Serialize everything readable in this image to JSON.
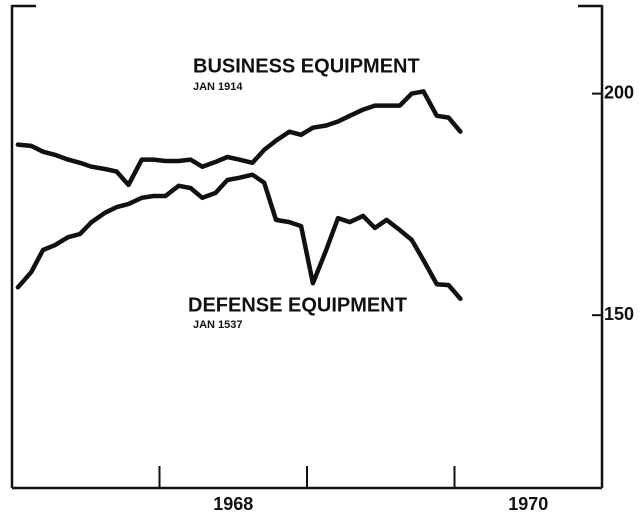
{
  "chart_data": {
    "type": "line",
    "annotations": [
      {
        "text": "BUSINESS EQUIPMENT",
        "sub": "JAN 1914"
      },
      {
        "text": "DEFENSE EQUIPMENT",
        "sub": "JAN 1537"
      }
    ],
    "x": [
      1967.04,
      1967.13,
      1967.21,
      1967.29,
      1967.38,
      1967.46,
      1967.54,
      1967.63,
      1967.71,
      1967.79,
      1967.88,
      1967.96,
      1968.04,
      1968.13,
      1968.21,
      1968.29,
      1968.38,
      1968.46,
      1968.54,
      1968.63,
      1968.71,
      1968.79,
      1968.88,
      1968.96,
      1969.04,
      1969.13,
      1969.21,
      1969.29,
      1969.38,
      1969.46,
      1969.54,
      1969.63,
      1969.71,
      1969.79,
      1969.88,
      1969.96,
      1970.04
    ],
    "series": [
      {
        "name": "BUSINESS EQUIPMENT",
        "color": "#111111",
        "values": [
          188.5,
          188.2,
          186.9,
          186.2,
          185.1,
          184.4,
          183.5,
          183.0,
          182.4,
          179.4,
          185.1,
          185.1,
          184.8,
          184.8,
          185.1,
          183.5,
          184.6,
          185.7,
          185.1,
          184.4,
          187.3,
          189.4,
          191.4,
          190.7,
          192.3,
          192.8,
          193.7,
          195.0,
          196.4,
          197.3,
          197.3,
          197.3,
          200.0,
          200.5,
          195.0,
          194.6,
          191.4
        ]
      },
      {
        "name": "DEFENSE EQUIPMENT",
        "color": "#111111",
        "values": [
          156.3,
          159.7,
          164.7,
          165.8,
          167.6,
          168.3,
          171.0,
          173.1,
          174.4,
          175.1,
          176.5,
          176.9,
          176.9,
          179.2,
          178.7,
          176.5,
          177.6,
          180.5,
          181.0,
          181.7,
          179.9,
          171.5,
          171.0,
          170.1,
          157.2,
          164.7,
          171.9,
          171.0,
          172.4,
          169.7,
          171.5,
          169.2,
          167.0,
          162.4,
          157.0,
          156.8,
          153.7
        ]
      }
    ],
    "xlim": [
      1967,
      1971
    ],
    "xticks": [
      {
        "value": 1968.5,
        "label": "1968"
      },
      {
        "value": 1970.5,
        "label": "1970"
      }
    ],
    "xminorticks": [
      1968,
      1969,
      1970
    ],
    "ylim": [
      111,
      220
    ],
    "yticks": [
      150,
      200
    ],
    "yaxis_side": "right",
    "grid": false
  }
}
